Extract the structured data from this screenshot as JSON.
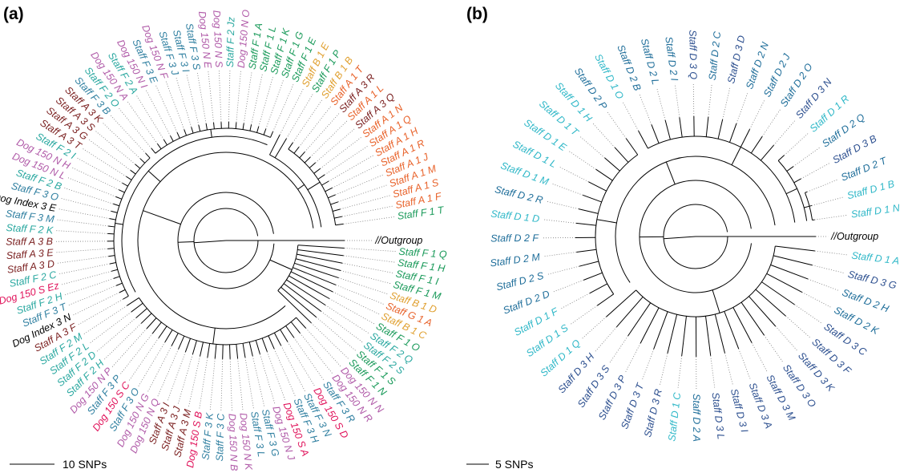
{
  "colors": {
    "group_a_staff": "#7a1f1f",
    "group_a1": "#e8622a",
    "group_b1": "#e0a030",
    "group_f1": "#1a9a5a",
    "group_f2": "#2aa8a0",
    "group_f3": "#2f7fa0",
    "dog150n": "#b05aa8",
    "dog150s": "#e0125a",
    "dog_index": "#000000",
    "outgroup": "#000000",
    "staff_d1": "#30b8c8",
    "staff_d2": "#1f6e9a",
    "staff_d3": "#2c4f8f"
  },
  "panel_a": {
    "label": "(a)",
    "scale_label": "10 SNPs",
    "leaves": [
      {
        "t": "//Outgroup",
        "c": "outgroup"
      },
      {
        "t": "Staff F 1 Q",
        "c": "group_f1"
      },
      {
        "t": "Staff F 1 H",
        "c": "group_f1"
      },
      {
        "t": "Staff F 1 I",
        "c": "group_f1"
      },
      {
        "t": "Staff F 1 M",
        "c": "group_f1"
      },
      {
        "t": "Staff B 1 D",
        "c": "group_b1"
      },
      {
        "t": "Staff G 1 A",
        "c": "group_a1"
      },
      {
        "t": "Staff B 1 C",
        "c": "group_b1"
      },
      {
        "t": "Staff F 1 O",
        "c": "group_f1"
      },
      {
        "t": "Staff F 2 Q",
        "c": "group_f2"
      },
      {
        "t": "Staff F 2 S",
        "c": "group_f2"
      },
      {
        "t": "Staff F 1 S",
        "c": "group_f1"
      },
      {
        "t": "Staff F 1 N",
        "c": "group_f1"
      },
      {
        "t": "Dog 150 N N",
        "c": "dog150n"
      },
      {
        "t": "Dog 150 N R",
        "c": "dog150n"
      },
      {
        "t": "Staff F 3 R",
        "c": "group_f3"
      },
      {
        "t": "Dog 150 S D",
        "c": "dog150s"
      },
      {
        "t": "Staff F 3 N",
        "c": "group_f3"
      },
      {
        "t": "Staff F 3 H",
        "c": "group_f3"
      },
      {
        "t": "Dog 150 S A",
        "c": "dog150s"
      },
      {
        "t": "Dog 150 N J",
        "c": "dog150n"
      },
      {
        "t": "Staff F 3 G",
        "c": "group_f3"
      },
      {
        "t": "Staff F 3 L",
        "c": "group_f3"
      },
      {
        "t": "Dog 150 N K",
        "c": "dog150n"
      },
      {
        "t": "Dog 150 N B",
        "c": "dog150n"
      },
      {
        "t": "Staff F 3 C",
        "c": "group_f3"
      },
      {
        "t": "Staff F 3 K",
        "c": "group_f3"
      },
      {
        "t": "Dog 150 S B",
        "c": "dog150s"
      },
      {
        "t": "Staff A 3 M",
        "c": "group_a_staff"
      },
      {
        "t": "Staff A 3 J",
        "c": "group_a_staff"
      },
      {
        "t": "Staff A 3 I",
        "c": "group_a_staff"
      },
      {
        "t": "Dog 150 N Q",
        "c": "dog150n"
      },
      {
        "t": "Dog 150 N G",
        "c": "dog150n"
      },
      {
        "t": "Staff F 3 O",
        "c": "group_f3"
      },
      {
        "t": "Dog 150 S C",
        "c": "dog150s"
      },
      {
        "t": "Staff F 3 P",
        "c": "group_f3"
      },
      {
        "t": "Dog 150 N P",
        "c": "dog150n"
      },
      {
        "t": "Staff F 2 H",
        "c": "group_f2"
      },
      {
        "t": "Staff F 2 D",
        "c": "group_f2"
      },
      {
        "t": "Staff F 2 L",
        "c": "group_f2"
      },
      {
        "t": "Staff F 2 M",
        "c": "group_f2"
      },
      {
        "t": "Staff A 3 F",
        "c": "group_a_staff"
      },
      {
        "t": "Dog Index 3 N",
        "c": "dog_index"
      },
      {
        "t": "Staff F 3 T",
        "c": "group_f3"
      },
      {
        "t": "Staff F 2 H",
        "c": "group_f2"
      },
      {
        "t": "Dog 150 S Ez",
        "c": "dog150s"
      },
      {
        "t": "Staff F 2 C",
        "c": "group_f2"
      },
      {
        "t": "Staff A 3 D",
        "c": "group_a_staff"
      },
      {
        "t": "Staff A 3 E",
        "c": "group_a_staff"
      },
      {
        "t": "Staff A 3 B",
        "c": "group_a_staff"
      },
      {
        "t": "Staff F 2 K",
        "c": "group_f2"
      },
      {
        "t": "Staff F 3 M",
        "c": "group_f3"
      },
      {
        "t": "Dog Index 3 E",
        "c": "dog_index"
      },
      {
        "t": "Staff F 3 O",
        "c": "group_f3"
      },
      {
        "t": "Staff F 2 B",
        "c": "group_f2"
      },
      {
        "t": "Dog 150 N L",
        "c": "dog150n"
      },
      {
        "t": "Dog 150 N H",
        "c": "dog150n"
      },
      {
        "t": "Staff F 2 I",
        "c": "group_f2"
      },
      {
        "t": "Staff A 3 T",
        "c": "group_a_staff"
      },
      {
        "t": "Staff A 3 G",
        "c": "group_a_staff"
      },
      {
        "t": "Staff A 3 S",
        "c": "group_a_staff"
      },
      {
        "t": "Staff A 3 K",
        "c": "group_a_staff"
      },
      {
        "t": "Staff F 3 B",
        "c": "group_f3"
      },
      {
        "t": "Staff F 2 O",
        "c": "group_f2"
      },
      {
        "t": "Dog 150 N A",
        "c": "dog150n"
      },
      {
        "t": "Staff F 2 A",
        "c": "group_f2"
      },
      {
        "t": "Dog 150 N I",
        "c": "dog150n"
      },
      {
        "t": "Staff F 3 E",
        "c": "group_f3"
      },
      {
        "t": "Dog 150 N F",
        "c": "dog150n"
      },
      {
        "t": "Staff F 3 J",
        "c": "group_f3"
      },
      {
        "t": "Staff F 3 I",
        "c": "group_f3"
      },
      {
        "t": "Staff F 3 S",
        "c": "group_f3"
      },
      {
        "t": "Dog 150 N E",
        "c": "dog150n"
      },
      {
        "t": "Dog 150 N S",
        "c": "dog150n"
      },
      {
        "t": "Staff F 2 Jz",
        "c": "group_f2"
      },
      {
        "t": "Dog 150 N O",
        "c": "dog150n"
      },
      {
        "t": "Staff F 1 A",
        "c": "group_f1"
      },
      {
        "t": "Staff F 1 L",
        "c": "group_f1"
      },
      {
        "t": "Staff F 1 K",
        "c": "group_f1"
      },
      {
        "t": "Staff F 1 G",
        "c": "group_f1"
      },
      {
        "t": "Staff F 1 E",
        "c": "group_f1"
      },
      {
        "t": "Staff B 1 E",
        "c": "group_b1"
      },
      {
        "t": "Staff F 1 P",
        "c": "group_f1"
      },
      {
        "t": "Staff B 1 B",
        "c": "group_b1"
      },
      {
        "t": "Staff A 1 T",
        "c": "group_a1"
      },
      {
        "t": "Staff A 3 R",
        "c": "group_a_staff"
      },
      {
        "t": "Staff A 1 L",
        "c": "group_a1"
      },
      {
        "t": "Staff A 3 Q",
        "c": "group_a_staff"
      },
      {
        "t": "Staff A 1 N",
        "c": "group_a1"
      },
      {
        "t": "Staff A 1 Q",
        "c": "group_a1"
      },
      {
        "t": "Staff A 1 H",
        "c": "group_a1"
      },
      {
        "t": "Staff A 1 R",
        "c": "group_a1"
      },
      {
        "t": "Staff A 1 J",
        "c": "group_a1"
      },
      {
        "t": "Staff A 1 M",
        "c": "group_a1"
      },
      {
        "t": "Staff A 1 S",
        "c": "group_a1"
      },
      {
        "t": "Staff A 1 F",
        "c": "group_a1"
      },
      {
        "t": "Staff F 1 T",
        "c": "group_f1"
      }
    ]
  },
  "panel_b": {
    "label": "(b)",
    "scale_label": "5 SNPs",
    "leaves": [
      {
        "t": "//Outgroup",
        "c": "outgroup"
      },
      {
        "t": "Staff D 1 A",
        "c": "staff_d1"
      },
      {
        "t": "Staff D 3 G",
        "c": "staff_d3"
      },
      {
        "t": "Staff D 2 H",
        "c": "staff_d2"
      },
      {
        "t": "Staff D 2 K",
        "c": "staff_d2"
      },
      {
        "t": "Staff D 3 C",
        "c": "staff_d3"
      },
      {
        "t": "Staff D 3 F",
        "c": "staff_d3"
      },
      {
        "t": "Staff D 3 K",
        "c": "staff_d3"
      },
      {
        "t": "Staff D 3 O",
        "c": "staff_d3"
      },
      {
        "t": "Staff D 3 M",
        "c": "staff_d3"
      },
      {
        "t": "Staff D 3 A",
        "c": "staff_d3"
      },
      {
        "t": "Staff D 3 I",
        "c": "staff_d3"
      },
      {
        "t": "Staff D 3 L",
        "c": "staff_d3"
      },
      {
        "t": "Staff D 2 A",
        "c": "staff_d2"
      },
      {
        "t": "Staff D 1 C",
        "c": "staff_d1"
      },
      {
        "t": "Staff D 3 R",
        "c": "staff_d3"
      },
      {
        "t": "Staff D 3 T",
        "c": "staff_d3"
      },
      {
        "t": "Staff D 3 P",
        "c": "staff_d3"
      },
      {
        "t": "Staff D 3 S",
        "c": "staff_d3"
      },
      {
        "t": "Staff D 3 H",
        "c": "staff_d3"
      },
      {
        "t": "Staff D 1 Q",
        "c": "staff_d1"
      },
      {
        "t": "Staff D 1 S",
        "c": "staff_d1"
      },
      {
        "t": "Staff D 1 F",
        "c": "staff_d1"
      },
      {
        "t": "Staff D 2 D",
        "c": "staff_d2"
      },
      {
        "t": "Staff D 2 S",
        "c": "staff_d2"
      },
      {
        "t": "Staff D 2 M",
        "c": "staff_d2"
      },
      {
        "t": "Staff D 2 F",
        "c": "staff_d2"
      },
      {
        "t": "Staff D 1 D",
        "c": "staff_d1"
      },
      {
        "t": "Staff D 2 R",
        "c": "staff_d2"
      },
      {
        "t": "Staff D 1 M",
        "c": "staff_d1"
      },
      {
        "t": "Staff D 1 L",
        "c": "staff_d1"
      },
      {
        "t": "Staff D 1 E",
        "c": "staff_d1"
      },
      {
        "t": "Staff D 1 T",
        "c": "staff_d1"
      },
      {
        "t": "Staff D 1 H",
        "c": "staff_d1"
      },
      {
        "t": "Staff D 2 P",
        "c": "staff_d2"
      },
      {
        "t": "Staff D 1 O",
        "c": "staff_d1"
      },
      {
        "t": "Staff D 2 B",
        "c": "staff_d2"
      },
      {
        "t": "Staff D 2 L",
        "c": "staff_d2"
      },
      {
        "t": "Staff D 2 I",
        "c": "staff_d2"
      },
      {
        "t": "Staff D 3 Q",
        "c": "staff_d3"
      },
      {
        "t": "Staff D 2 C",
        "c": "staff_d2"
      },
      {
        "t": "Staff D 3 D",
        "c": "staff_d3"
      },
      {
        "t": "Staff D 2 N",
        "c": "staff_d2"
      },
      {
        "t": "Staff D 2 J",
        "c": "staff_d2"
      },
      {
        "t": "Staff D 2 O",
        "c": "staff_d2"
      },
      {
        "t": "Staff D 3 N",
        "c": "staff_d3"
      },
      {
        "t": "Staff D 1 R",
        "c": "staff_d1"
      },
      {
        "t": "Staff D 2 Q",
        "c": "staff_d2"
      },
      {
        "t": "Staff D 3 B",
        "c": "staff_d3"
      },
      {
        "t": "Staff D 2 T",
        "c": "staff_d2"
      },
      {
        "t": "Staff D 1 B",
        "c": "staff_d1"
      },
      {
        "t": "Staff D 1 N",
        "c": "staff_d1"
      }
    ]
  }
}
